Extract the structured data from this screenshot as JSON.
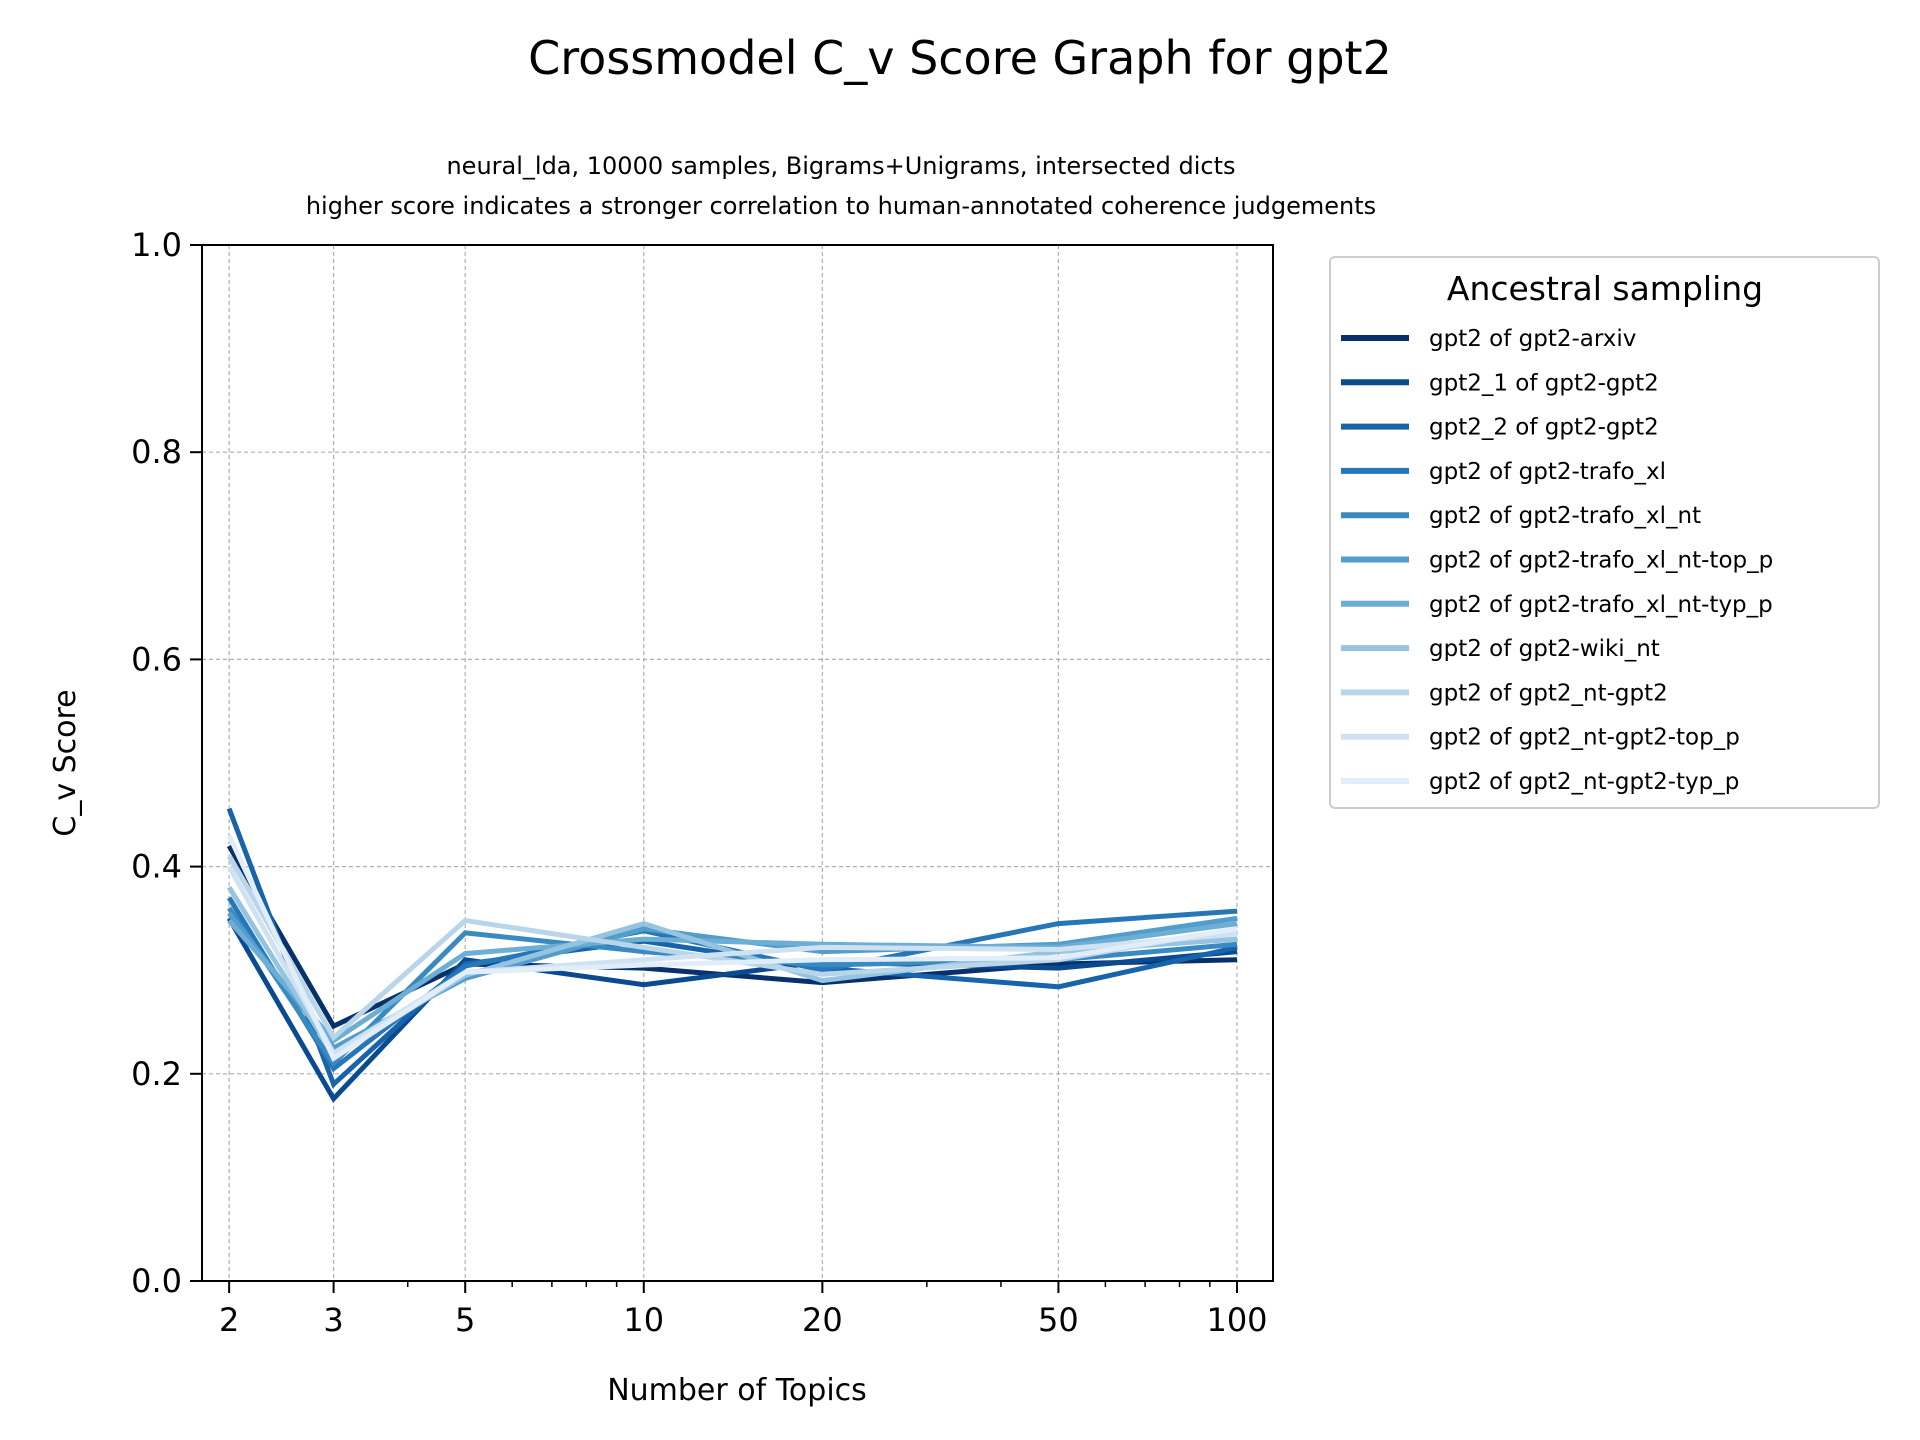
{
  "chart_data": {
    "type": "line",
    "title": "Crossmodel C_v Score Graph for gpt2",
    "subtitle_lines": [
      "neural_lda, 10000 samples, Bigrams+Unigrams, intersected dicts",
      "higher score indicates a stronger correlation to human-annotated coherence judgements"
    ],
    "xlabel": "Number of Topics",
    "ylabel": "C_v Score",
    "x_scale": "log",
    "x": [
      2,
      3,
      5,
      10,
      20,
      50,
      100
    ],
    "x_ticks": [
      "2",
      "3",
      "5",
      "10",
      "20",
      "50",
      "100"
    ],
    "ylim": [
      0,
      1
    ],
    "y_ticks": [
      "0.0",
      "0.2",
      "0.4",
      "0.6",
      "0.8",
      "1.0"
    ],
    "grid": true,
    "legend": {
      "title": "Ancestral sampling",
      "placement": "outside-right"
    },
    "series": [
      {
        "name": "gpt2 of gpt2-arxiv",
        "color": "#08306b",
        "values": [
          0.42,
          0.246,
          0.306,
          0.302,
          0.288,
          0.306,
          0.31
        ]
      },
      {
        "name": "gpt2_1 of gpt2-gpt2",
        "color": "#0a4a90",
        "values": [
          0.35,
          0.176,
          0.31,
          0.286,
          0.308,
          0.302,
          0.318
        ]
      },
      {
        "name": "gpt2_2 of gpt2-gpt2",
        "color": "#1764ab",
        "values": [
          0.456,
          0.19,
          0.306,
          0.328,
          0.302,
          0.284,
          0.322
        ]
      },
      {
        "name": "gpt2 of gpt2-trafo_xl",
        "color": "#2676b8",
        "values": [
          0.37,
          0.205,
          0.304,
          0.338,
          0.3,
          0.345,
          0.357
        ]
      },
      {
        "name": "gpt2 of gpt2-trafo_xl_nt",
        "color": "#3a8ac2",
        "values": [
          0.36,
          0.21,
          0.336,
          0.318,
          0.305,
          0.31,
          0.325
        ]
      },
      {
        "name": "gpt2 of gpt2-trafo_xl_nt-top_p",
        "color": "#529dcc",
        "values": [
          0.355,
          0.225,
          0.292,
          0.34,
          0.318,
          0.325,
          0.35
        ]
      },
      {
        "name": "gpt2 of gpt2-trafo_xl_nt-typ_p",
        "color": "#6daed5",
        "values": [
          0.348,
          0.232,
          0.316,
          0.33,
          0.325,
          0.322,
          0.345
        ]
      },
      {
        "name": "gpt2 of gpt2-wiki_nt",
        "color": "#94c4df",
        "values": [
          0.38,
          0.218,
          0.295,
          0.345,
          0.29,
          0.318,
          0.33
        ]
      },
      {
        "name": "gpt2 of gpt2_nt-gpt2",
        "color": "#b8d5ea",
        "values": [
          0.41,
          0.235,
          0.348,
          0.322,
          0.296,
          0.31,
          0.34
        ]
      },
      {
        "name": "gpt2 of gpt2_nt-gpt2-top_p",
        "color": "#d0e2f2",
        "values": [
          0.4,
          0.22,
          0.298,
          0.31,
          0.322,
          0.32,
          0.335
        ]
      },
      {
        "name": "gpt2 of gpt2_nt-gpt2-typ_p",
        "color": "#e1edf8",
        "values": [
          0.43,
          0.215,
          0.298,
          0.305,
          0.31,
          0.312,
          0.34
        ]
      }
    ]
  }
}
